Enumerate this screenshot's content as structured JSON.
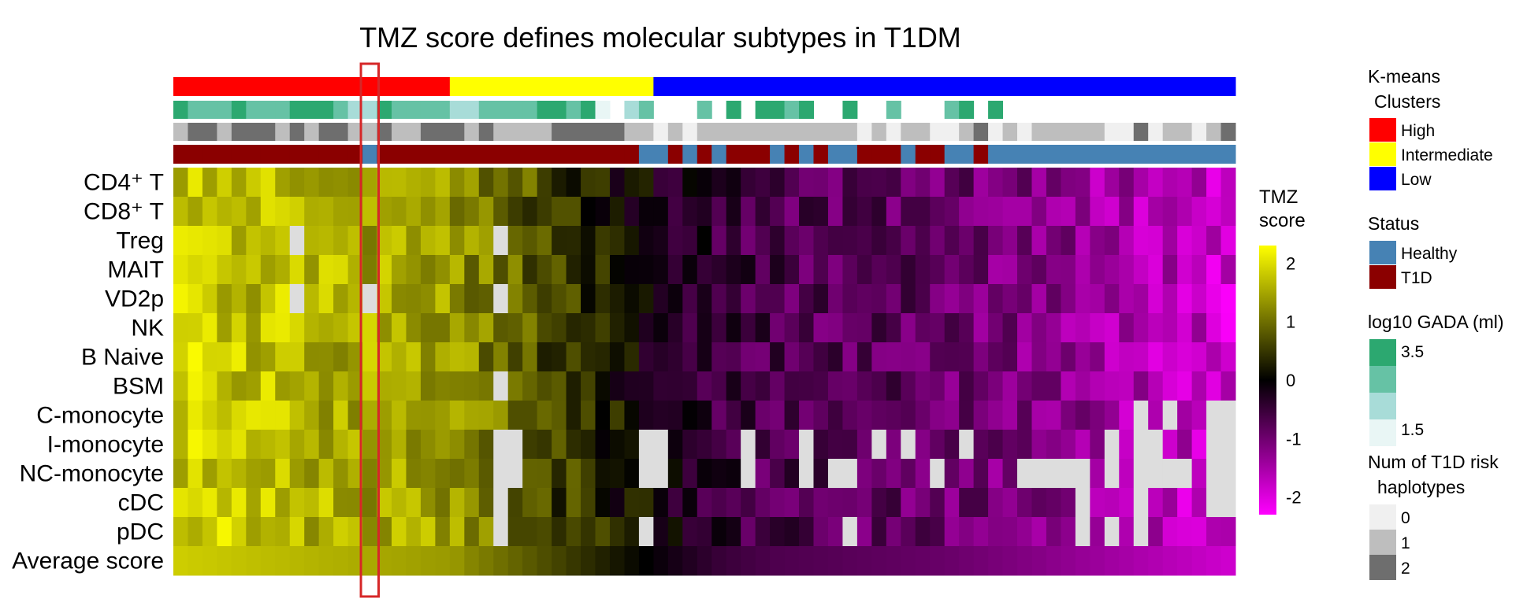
{
  "chart_data": {
    "type": "heatmap",
    "title": "TMZ score defines molecular subtypes in T1DM",
    "n_samples": 73,
    "rows": [
      "CD4⁺ T",
      "CD8⁺ T",
      "Treg",
      "MAIT",
      "VD2p",
      "NK",
      "B Naive",
      "BSM",
      "C-monocyte",
      "I-monocyte",
      "NC-monocyte",
      "cDC",
      "pDC",
      "Average score"
    ],
    "average_score": [
      1.85,
      1.82,
      1.8,
      1.78,
      1.75,
      1.72,
      1.7,
      1.68,
      1.65,
      1.62,
      1.6,
      1.58,
      1.55,
      1.52,
      1.5,
      1.48,
      1.45,
      1.42,
      1.4,
      1.35,
      1.2,
      1.1,
      1.0,
      0.9,
      0.8,
      0.7,
      0.6,
      0.5,
      0.4,
      0.3,
      0.2,
      0.1,
      0.0,
      -0.1,
      -0.2,
      -0.3,
      -0.4,
      -0.5,
      -0.55,
      -0.6,
      -0.65,
      -0.7,
      -0.72,
      -0.74,
      -0.76,
      -0.78,
      -0.8,
      -0.82,
      -0.84,
      -0.86,
      -0.88,
      -0.9,
      -0.93,
      -0.96,
      -1.0,
      -1.04,
      -1.08,
      -1.12,
      -1.16,
      -1.2,
      -1.25,
      -1.3,
      -1.35,
      -1.4,
      -1.45,
      -1.5,
      -1.55,
      -1.6,
      -1.65,
      -1.7,
      -1.75,
      -1.8,
      -1.85
    ],
    "missing_cells": [
      [
        2,
        8
      ],
      [
        2,
        22
      ],
      [
        4,
        8
      ],
      [
        4,
        13
      ],
      [
        4,
        22
      ],
      [
        7,
        22
      ],
      [
        8,
        66
      ],
      [
        8,
        68
      ],
      [
        8,
        71
      ],
      [
        8,
        72
      ],
      [
        9,
        22
      ],
      [
        9,
        23
      ],
      [
        9,
        32
      ],
      [
        9,
        33
      ],
      [
        9,
        39
      ],
      [
        9,
        43
      ],
      [
        9,
        48
      ],
      [
        9,
        50
      ],
      [
        9,
        54
      ],
      [
        9,
        64
      ],
      [
        9,
        66
      ],
      [
        9,
        67
      ],
      [
        9,
        71
      ],
      [
        9,
        72
      ],
      [
        10,
        22
      ],
      [
        10,
        23
      ],
      [
        10,
        32
      ],
      [
        10,
        33
      ],
      [
        10,
        39
      ],
      [
        10,
        43
      ],
      [
        10,
        45
      ],
      [
        10,
        46
      ],
      [
        10,
        52
      ],
      [
        10,
        58
      ],
      [
        10,
        59
      ],
      [
        10,
        60
      ],
      [
        10,
        61
      ],
      [
        10,
        62
      ],
      [
        10,
        64
      ],
      [
        10,
        66
      ],
      [
        10,
        67
      ],
      [
        10,
        68
      ],
      [
        10,
        69
      ],
      [
        10,
        71
      ],
      [
        10,
        72
      ],
      [
        11,
        22
      ],
      [
        11,
        62
      ],
      [
        11,
        66
      ],
      [
        11,
        71
      ],
      [
        11,
        72
      ],
      [
        12,
        22
      ],
      [
        12,
        32
      ],
      [
        12,
        46
      ],
      [
        12,
        62
      ],
      [
        12,
        64
      ],
      [
        12,
        66
      ]
    ],
    "color_scale": {
      "name": "TMZ score",
      "label_line1": "TMZ",
      "label_line2": "score",
      "min": -2.3,
      "max": 2.3,
      "ticks": [
        2,
        1,
        0,
        -1,
        -2
      ],
      "colors": [
        "#ff00ff",
        "#000000",
        "#ffff00"
      ]
    },
    "highlighted_column": 13,
    "annotation_tracks": {
      "kmeans": {
        "legend_line1": "K-means",
        "legend_line2": "Clusters",
        "segments": [
          {
            "label": "High",
            "start": 0,
            "end": 18,
            "color": "#ff0000"
          },
          {
            "label": "Intermediate",
            "start": 19,
            "end": 32,
            "color": "#ffff00"
          },
          {
            "label": "Low",
            "start": 33,
            "end": 72,
            "color": "#0000ff"
          }
        ]
      },
      "gada": {
        "legend": "log10 GADA (ml)",
        "scale_ticks": [
          "3.5",
          "1.5"
        ],
        "colors": [
          "#2ca870",
          "#66c2a5",
          "#a8dcd8",
          "#e9f6f5"
        ],
        "levels": [
          1,
          2,
          2,
          2,
          1,
          2,
          2,
          2,
          1,
          1,
          1,
          2,
          3,
          3,
          1,
          2,
          2,
          2,
          2,
          3,
          3,
          2,
          2,
          2,
          2,
          1,
          1,
          2,
          1,
          4,
          0,
          3,
          2,
          0,
          0,
          0,
          2,
          0,
          1,
          0,
          1,
          1,
          2,
          1,
          0,
          0,
          1,
          0,
          0,
          2,
          0,
          0,
          0,
          2,
          1,
          0,
          1,
          0,
          0,
          0,
          0,
          0,
          0,
          0,
          0,
          0,
          0,
          0,
          0,
          0,
          0,
          0,
          0
        ]
      },
      "haplotypes": {
        "legend_line1": "Num of T1D risk",
        "legend_line2": "haplotypes",
        "categories": [
          "0",
          "1",
          "2"
        ],
        "colors": [
          "#f0f0f0",
          "#bebebe",
          "#6e6e6e"
        ],
        "values": [
          1,
          2,
          2,
          1,
          2,
          2,
          2,
          1,
          2,
          1,
          2,
          2,
          1,
          1,
          2,
          1,
          1,
          2,
          2,
          2,
          1,
          2,
          1,
          1,
          1,
          1,
          2,
          2,
          2,
          2,
          2,
          1,
          1,
          0,
          1,
          0,
          1,
          1,
          1,
          1,
          1,
          1,
          1,
          1,
          1,
          1,
          1,
          0,
          1,
          0,
          1,
          1,
          0,
          0,
          1,
          2,
          0,
          1,
          0,
          1,
          1,
          1,
          1,
          1,
          0,
          0,
          2,
          0,
          1,
          1,
          0,
          1,
          2
        ]
      },
      "status": {
        "legend": "Status",
        "categories": [
          "Healthy",
          "T1D"
        ],
        "colors": [
          "#4682b4",
          "#8b0000"
        ],
        "values": [
          1,
          1,
          1,
          1,
          1,
          1,
          1,
          1,
          1,
          1,
          1,
          1,
          1,
          0,
          1,
          1,
          1,
          1,
          1,
          1,
          1,
          1,
          1,
          1,
          1,
          1,
          1,
          1,
          1,
          1,
          1,
          1,
          0,
          0,
          1,
          0,
          1,
          0,
          1,
          1,
          1,
          0,
          1,
          0,
          1,
          0,
          0,
          1,
          1,
          1,
          0,
          1,
          1,
          0,
          0,
          1,
          0,
          0,
          0,
          0,
          0,
          0,
          0,
          0,
          0,
          0,
          0,
          0,
          0,
          0,
          0,
          0,
          0
        ]
      }
    }
  }
}
